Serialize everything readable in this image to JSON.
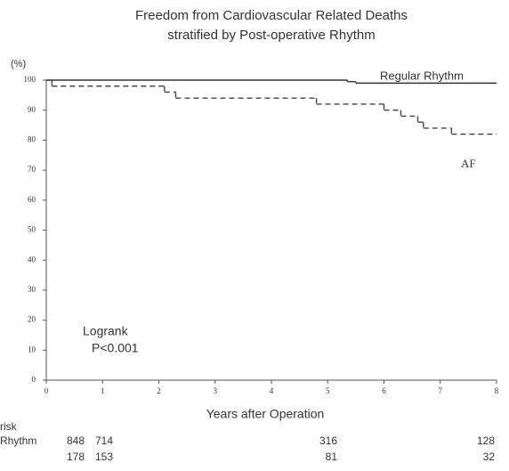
{
  "chart_data": {
    "type": "step",
    "title": "Freedom from Cardiovascular Related Deaths",
    "subtitle": "stratified by Post-operative Rhythm",
    "y_label": "(%)",
    "x_label": "Years after Operation",
    "annotations": [
      "Logrank",
      "P<0.001"
    ],
    "xlim": [
      0,
      8
    ],
    "xticks": [
      0,
      1,
      2,
      3,
      4,
      5,
      6,
      7,
      8
    ],
    "ylim": [
      0,
      100
    ],
    "yticks": [
      0,
      10,
      20,
      30,
      40,
      50,
      60,
      70,
      80,
      90,
      100
    ],
    "grid": false,
    "series": [
      {
        "name": "Regular Rhythm",
        "color": "#333333",
        "dash": false,
        "x": [
          0,
          5.35,
          5.5,
          8
        ],
        "values": [
          100,
          99.5,
          99,
          99
        ]
      },
      {
        "name": "AF",
        "color": "#444444",
        "dash": true,
        "x": [
          0,
          0.1,
          2.1,
          2.3,
          4.8,
          6.0,
          6.3,
          6.6,
          6.7,
          7.2,
          8
        ],
        "values": [
          100,
          98,
          96,
          94,
          92,
          90,
          88,
          86,
          84,
          82,
          82
        ]
      }
    ]
  },
  "risk_table": {
    "title": "risk",
    "rows": [
      {
        "label": "Rhythm",
        "counts": [
          848,
          714,
          316,
          128
        ]
      },
      {
        "counts": [
          178,
          153,
          81,
          32
        ]
      }
    ]
  }
}
